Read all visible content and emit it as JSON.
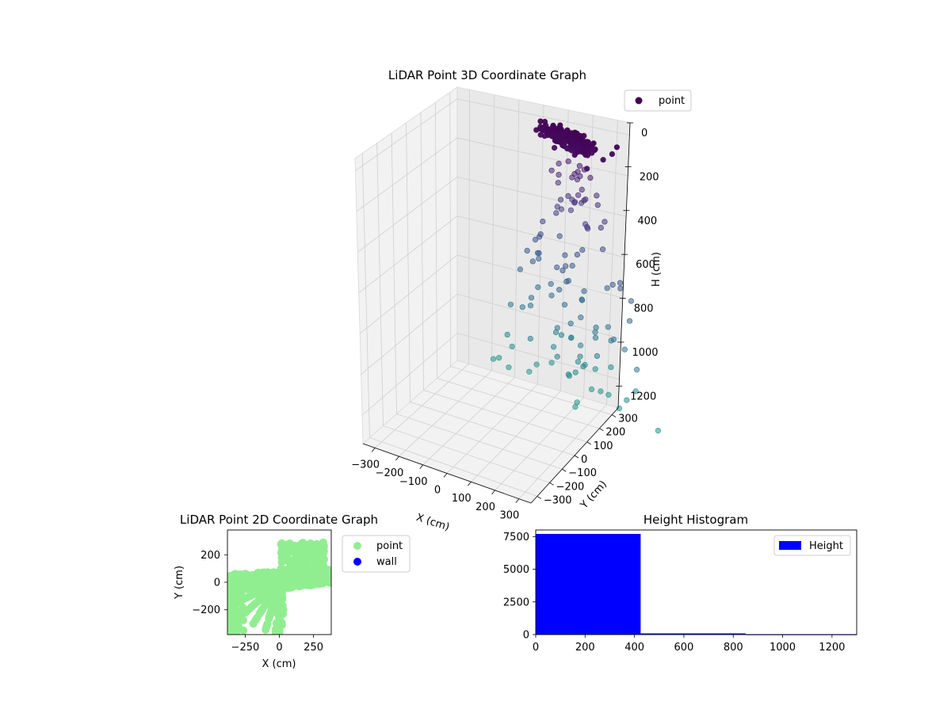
{
  "chart_data": [
    {
      "type": "scatter",
      "projection": "3d",
      "title": "LiDAR Point 3D Coordinate Graph",
      "xlabel": "X (cm)",
      "ylabel": "Y (cm)",
      "zlabel": "H (cm)",
      "x_ticks": [
        "−300",
        "−200",
        "−100",
        "0",
        "100",
        "200",
        "300"
      ],
      "y_ticks": [
        "−300",
        "−200",
        "−100",
        "0",
        "100",
        "200",
        "300"
      ],
      "z_ticks": [
        "0",
        "200",
        "400",
        "600",
        "800",
        "1000",
        "1200"
      ],
      "xlim": [
        -380,
        380
      ],
      "ylim": [
        -380,
        380
      ],
      "zlim": [
        0,
        1300
      ],
      "z_inverted": true,
      "colormap": "viridis",
      "legend": [
        {
          "label": "point",
          "color": "#440154"
        }
      ],
      "legend_position": "top-right",
      "grid": true,
      "series": [
        {
          "name": "point",
          "description_points": [
            {
              "x": 0,
              "y": -200,
              "h": 0
            },
            {
              "x": 60,
              "y": -150,
              "h": 30
            },
            {
              "x": 120,
              "y": -80,
              "h": 60
            },
            {
              "x": -150,
              "y": -20,
              "h": 80
            },
            {
              "x": -120,
              "y": 40,
              "h": 110
            },
            {
              "x": 150,
              "y": 10,
              "h": 120
            },
            {
              "x": -250,
              "y": -40,
              "h": 200
            },
            {
              "x": -300,
              "y": -60,
              "h": 300
            },
            {
              "x": 200,
              "y": 40,
              "h": 260
            },
            {
              "x": 260,
              "y": 60,
              "h": 380
            },
            {
              "x": -330,
              "y": -70,
              "h": 420
            },
            {
              "x": 290,
              "y": 120,
              "h": 520
            },
            {
              "x": -350,
              "y": -90,
              "h": 560
            },
            {
              "x": 310,
              "y": 180,
              "h": 660
            },
            {
              "x": -100,
              "y": -200,
              "h": 700
            },
            {
              "x": 100,
              "y": 250,
              "h": 820
            },
            {
              "x": -200,
              "y": -250,
              "h": 900
            },
            {
              "x": 200,
              "y": 300,
              "h": 1000
            },
            {
              "x": -280,
              "y": -300,
              "h": 1100
            },
            {
              "x": 250,
              "y": -280,
              "h": 1250
            }
          ]
        }
      ]
    },
    {
      "type": "scatter",
      "title": "LiDAR Point 2D Coordinate Graph",
      "xlabel": "X (cm)",
      "ylabel": "Y (cm)",
      "xlim": [
        -380,
        380
      ],
      "ylim": [
        -380,
        380
      ],
      "x_ticks": [
        "−250",
        "0",
        "250"
      ],
      "x_tick_values": [
        -250,
        0,
        250
      ],
      "y_ticks": [
        "200",
        "0",
        "−200"
      ],
      "y_tick_values": [
        200,
        0,
        -200
      ],
      "legend": [
        {
          "label": "point",
          "color": "#90ee90"
        },
        {
          "label": "wall",
          "color": "#0000ff"
        }
      ],
      "legend_position": "outside-right",
      "series": [
        {
          "name": "point",
          "color": "#90ee90"
        },
        {
          "name": "wall",
          "color": "#0000ff"
        }
      ]
    },
    {
      "type": "bar",
      "title": "Height Histogram",
      "xlim": [
        0,
        1300
      ],
      "ylim": [
        0,
        8000
      ],
      "x_ticks": [
        "0",
        "200",
        "400",
        "600",
        "800",
        "1000",
        "1200"
      ],
      "x_tick_values": [
        0,
        200,
        400,
        600,
        800,
        1000,
        1200
      ],
      "y_ticks": [
        "0",
        "2500",
        "5000",
        "7500"
      ],
      "y_tick_values": [
        0,
        2500,
        5000,
        7500
      ],
      "bins": [
        {
          "start": 0,
          "end": 425,
          "count": 7700
        },
        {
          "start": 425,
          "end": 850,
          "count": 90
        },
        {
          "start": 850,
          "end": 1300,
          "count": 30
        }
      ],
      "legend": [
        {
          "label": "Height",
          "color": "#0000ff"
        }
      ],
      "legend_position": "top-right"
    }
  ]
}
